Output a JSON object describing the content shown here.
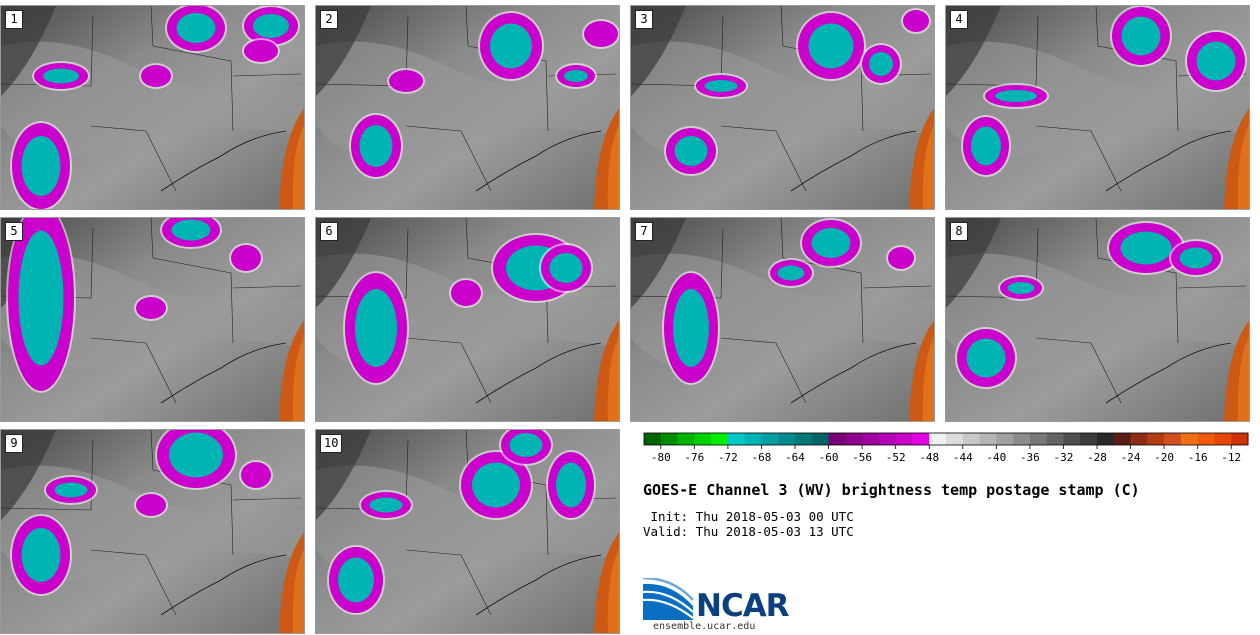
{
  "panels": [
    {
      "label": "1"
    },
    {
      "label": "2"
    },
    {
      "label": "3"
    },
    {
      "label": "4"
    },
    {
      "label": "5"
    },
    {
      "label": "6"
    },
    {
      "label": "7"
    },
    {
      "label": "8"
    },
    {
      "label": "9"
    },
    {
      "label": "10"
    }
  ],
  "colorbar": {
    "colors": [
      "#006400",
      "#008c00",
      "#00b400",
      "#00d200",
      "#00f000",
      "#00c8c8",
      "#00b4b4",
      "#00a0a0",
      "#008c8c",
      "#007878",
      "#006464",
      "#780078",
      "#8c008c",
      "#a000a0",
      "#b400b4",
      "#c800c8",
      "#e600e6",
      "#f0f0f0",
      "#dcdcdc",
      "#c8c8c8",
      "#b4b4b4",
      "#a0a0a0",
      "#8c8c8c",
      "#787878",
      "#646464",
      "#505050",
      "#3c3c3c",
      "#282828",
      "#5a1e14",
      "#8c2d14",
      "#b43c14",
      "#d2501e",
      "#f06e14",
      "#f05a0a",
      "#e6460a",
      "#d2320a"
    ],
    "ticks": [
      "-80",
      "-76",
      "-72",
      "-68",
      "-64",
      "-60",
      "-56",
      "-52",
      "-48",
      "-44",
      "-40",
      "-36",
      "-32",
      "-28",
      "-24",
      "-20",
      "-16",
      "-12"
    ]
  },
  "title": "GOES-E Channel 3 (WV) brightness temp postage stamp (C)",
  "init": " Init: Thu 2018-05-03 00 UTC",
  "valid": "Valid: Thu 2018-05-03 13 UTC",
  "logo": {
    "text": "NCAR",
    "site": "ensemble.ucar.edu"
  }
}
